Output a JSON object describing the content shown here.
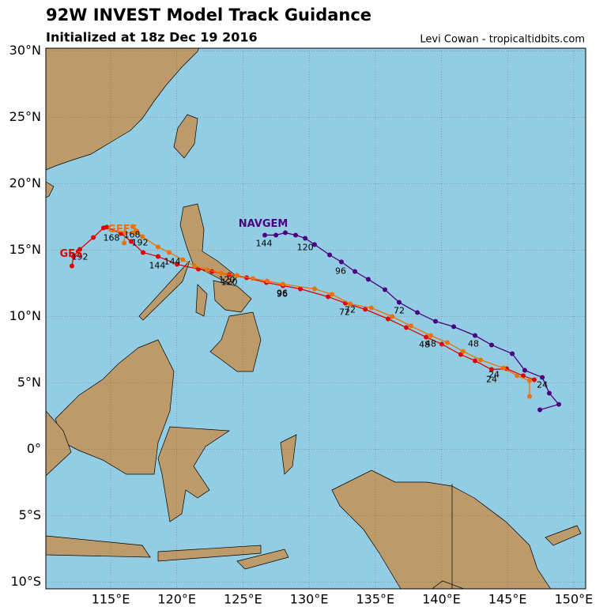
{
  "chart_data": {
    "type": "track-map",
    "title": "92W INVEST Model Track Guidance",
    "subtitle": "Initialized at 18z Dec 19 2016",
    "credit": "Levi Cowan - tropicaltidbits.com",
    "xlim": [
      110.1,
      150.9
    ],
    "ylim": [
      -10.5,
      30.2
    ],
    "grid": true,
    "xticks": [
      {
        "value": 115,
        "label": "115°E"
      },
      {
        "value": 120,
        "label": "120°E"
      },
      {
        "value": 125,
        "label": "125°E"
      },
      {
        "value": 130,
        "label": "130°E"
      },
      {
        "value": 135,
        "label": "135°E"
      },
      {
        "value": 140,
        "label": "140°E"
      },
      {
        "value": 145,
        "label": "145°E"
      },
      {
        "value": 150,
        "label": "150°E"
      }
    ],
    "yticks": [
      {
        "value": -10,
        "label": "10°S"
      },
      {
        "value": -5,
        "label": "5°S"
      },
      {
        "value": 0,
        "label": "0°"
      },
      {
        "value": 5,
        "label": "5°N"
      },
      {
        "value": 10,
        "label": "10°N"
      },
      {
        "value": 15,
        "label": "15°N"
      },
      {
        "value": 20,
        "label": "20°N"
      },
      {
        "value": 25,
        "label": "25°N"
      },
      {
        "value": 30,
        "label": "30°N"
      }
    ],
    "series": [
      {
        "name": "NAVGEM",
        "color": "#4b0082",
        "name_x": 126.53,
        "name_y": 16.96,
        "x": [
          147.44,
          148.87,
          148.15,
          147.62,
          146.3,
          145.35,
          143.79,
          142.54,
          140.93,
          139.55,
          138.18,
          136.8,
          135.73,
          134.47,
          133.46,
          132.44,
          131.55,
          130.41,
          129.7,
          128.98,
          128.2,
          127.49,
          126.65
        ],
        "y": [
          2.98,
          3.39,
          4.23,
          5.42,
          5.95,
          7.2,
          7.86,
          8.57,
          9.23,
          9.64,
          10.3,
          11.07,
          12.02,
          12.8,
          13.39,
          14.11,
          14.64,
          15.42,
          15.89,
          16.13,
          16.31,
          16.13,
          16.13
        ],
        "labels": [
          {
            "text": "24",
            "x": 147.62,
            "y": 4.82
          },
          {
            "text": "48",
            "x": 142.42,
            "y": 7.92
          },
          {
            "text": "72",
            "x": 136.8,
            "y": 10.42
          },
          {
            "text": "96",
            "x": 132.38,
            "y": 13.39
          },
          {
            "text": "120",
            "x": 129.7,
            "y": 15.18
          },
          {
            "text": "144",
            "x": 126.59,
            "y": 15.48
          }
        ]
      },
      {
        "name": "GFS",
        "color": "#e00000",
        "name_x": 112.01,
        "name_y": 14.7,
        "x": [
          147.02,
          146.18,
          144.93,
          143.79,
          142.54,
          141.46,
          140.03,
          138.84,
          137.34,
          135.97,
          134.24,
          132.74,
          131.43,
          129.34,
          128.02,
          126.77,
          125.28,
          123.96,
          122.65,
          121.63,
          120.02,
          118.58,
          117.45,
          116.55,
          115.78,
          114.7,
          114.46,
          113.69,
          112.67,
          112.19,
          112.07
        ],
        "y": [
          5.24,
          5.54,
          6.07,
          6.01,
          6.67,
          7.14,
          7.92,
          8.45,
          9.17,
          9.82,
          10.54,
          11.01,
          11.49,
          12.08,
          12.32,
          12.56,
          12.92,
          13.15,
          13.39,
          13.57,
          13.93,
          14.52,
          14.82,
          15.65,
          16.25,
          16.73,
          16.67,
          15.95,
          15.06,
          14.52,
          13.81
        ],
        "labels": [
          {
            "text": "24",
            "x": 143.79,
            "y": 5.24
          },
          {
            "text": "48",
            "x": 138.72,
            "y": 7.86
          },
          {
            "text": "72",
            "x": 132.68,
            "y": 10.3
          },
          {
            "text": "96",
            "x": 127.96,
            "y": 11.67
          },
          {
            "text": "120",
            "x": 123.96,
            "y": 12.56
          },
          {
            "text": "144",
            "x": 118.52,
            "y": 13.81
          },
          {
            "text": "168",
            "x": 115.06,
            "y": 15.89
          },
          {
            "text": "192",
            "x": 112.67,
            "y": 14.46
          }
        ]
      },
      {
        "name": "GEFS",
        "color": "#f07000",
        "name_x": 115.9,
        "name_y": 16.55,
        "x": [
          146.66,
          146.66,
          145.71,
          144.69,
          142.96,
          141.64,
          140.45,
          139.19,
          137.7,
          136.27,
          134.71,
          133.1,
          131.73,
          130.41,
          128.02,
          126.83,
          125.75,
          124.56,
          123.36,
          122.29,
          121.33,
          120.44,
          119.42,
          118.58,
          117.39,
          116.97,
          116.67,
          116.85,
          116.08,
          116.02
        ],
        "y": [
          3.99,
          5.18,
          5.54,
          6.13,
          6.73,
          7.38,
          8.04,
          8.57,
          9.29,
          10.0,
          10.65,
          10.95,
          11.67,
          12.08,
          12.44,
          12.68,
          12.86,
          13.09,
          13.27,
          13.51,
          13.81,
          14.28,
          14.82,
          15.24,
          16.01,
          16.43,
          16.78,
          16.31,
          16.31,
          15.53
        ],
        "labels": [
          {
            "text": "24",
            "x": 143.97,
            "y": 5.59
          },
          {
            "text": "48",
            "x": 139.19,
            "y": 7.92
          },
          {
            "text": "72",
            "x": 133.1,
            "y": 10.48
          },
          {
            "text": "96",
            "x": 127.96,
            "y": 11.73
          },
          {
            "text": "120",
            "x": 123.78,
            "y": 12.74
          },
          {
            "text": "144",
            "x": 119.66,
            "y": 14.11
          },
          {
            "text": "168",
            "x": 116.61,
            "y": 16.13
          },
          {
            "text": "192",
            "x": 117.21,
            "y": 15.53
          }
        ]
      }
    ]
  }
}
